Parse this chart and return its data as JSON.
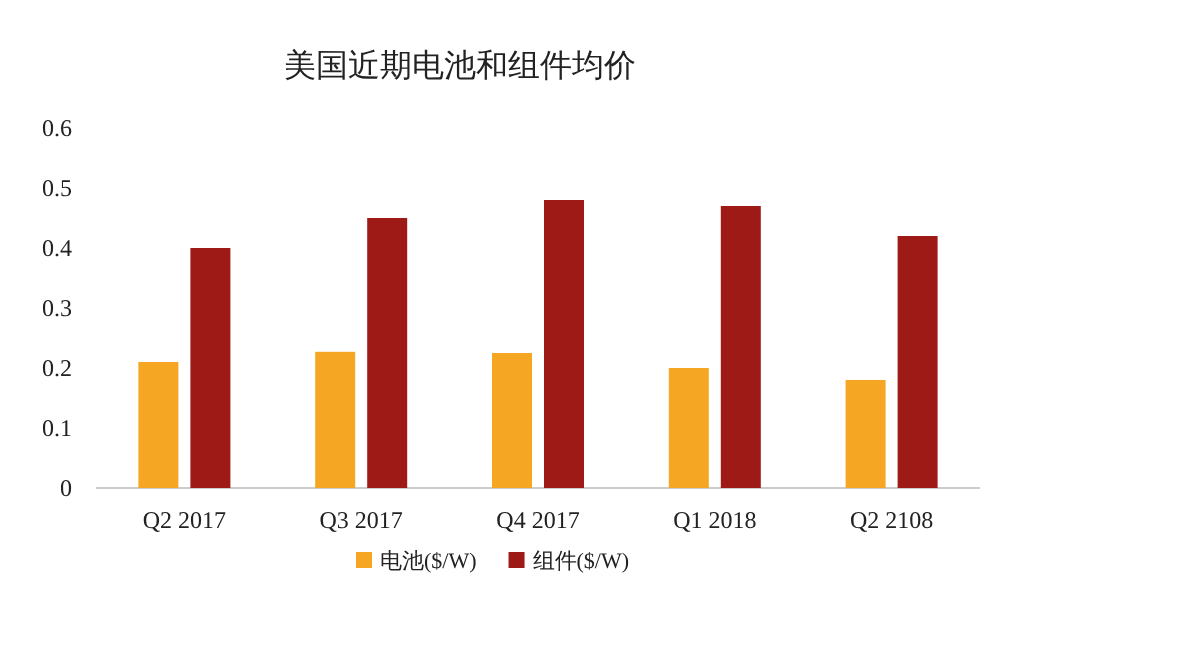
{
  "chart_data": {
    "type": "bar",
    "title": "美国近期电池和组件均价",
    "categories": [
      "Q2 2017",
      "Q3 2017",
      "Q4 2017",
      "Q1 2018",
      "Q2 2108"
    ],
    "series": [
      {
        "name": "电池($/W)",
        "color": "#f5a623",
        "values": [
          0.21,
          0.227,
          0.225,
          0.2,
          0.18
        ]
      },
      {
        "name": "组件($/W)",
        "color": "#9e1a17",
        "values": [
          0.4,
          0.45,
          0.48,
          0.47,
          0.42
        ]
      }
    ],
    "ylim": [
      0,
      0.6
    ],
    "yticks": [
      0,
      0.1,
      0.2,
      0.3,
      0.4,
      0.5,
      0.6
    ],
    "grid": false,
    "legend": "bottom"
  }
}
